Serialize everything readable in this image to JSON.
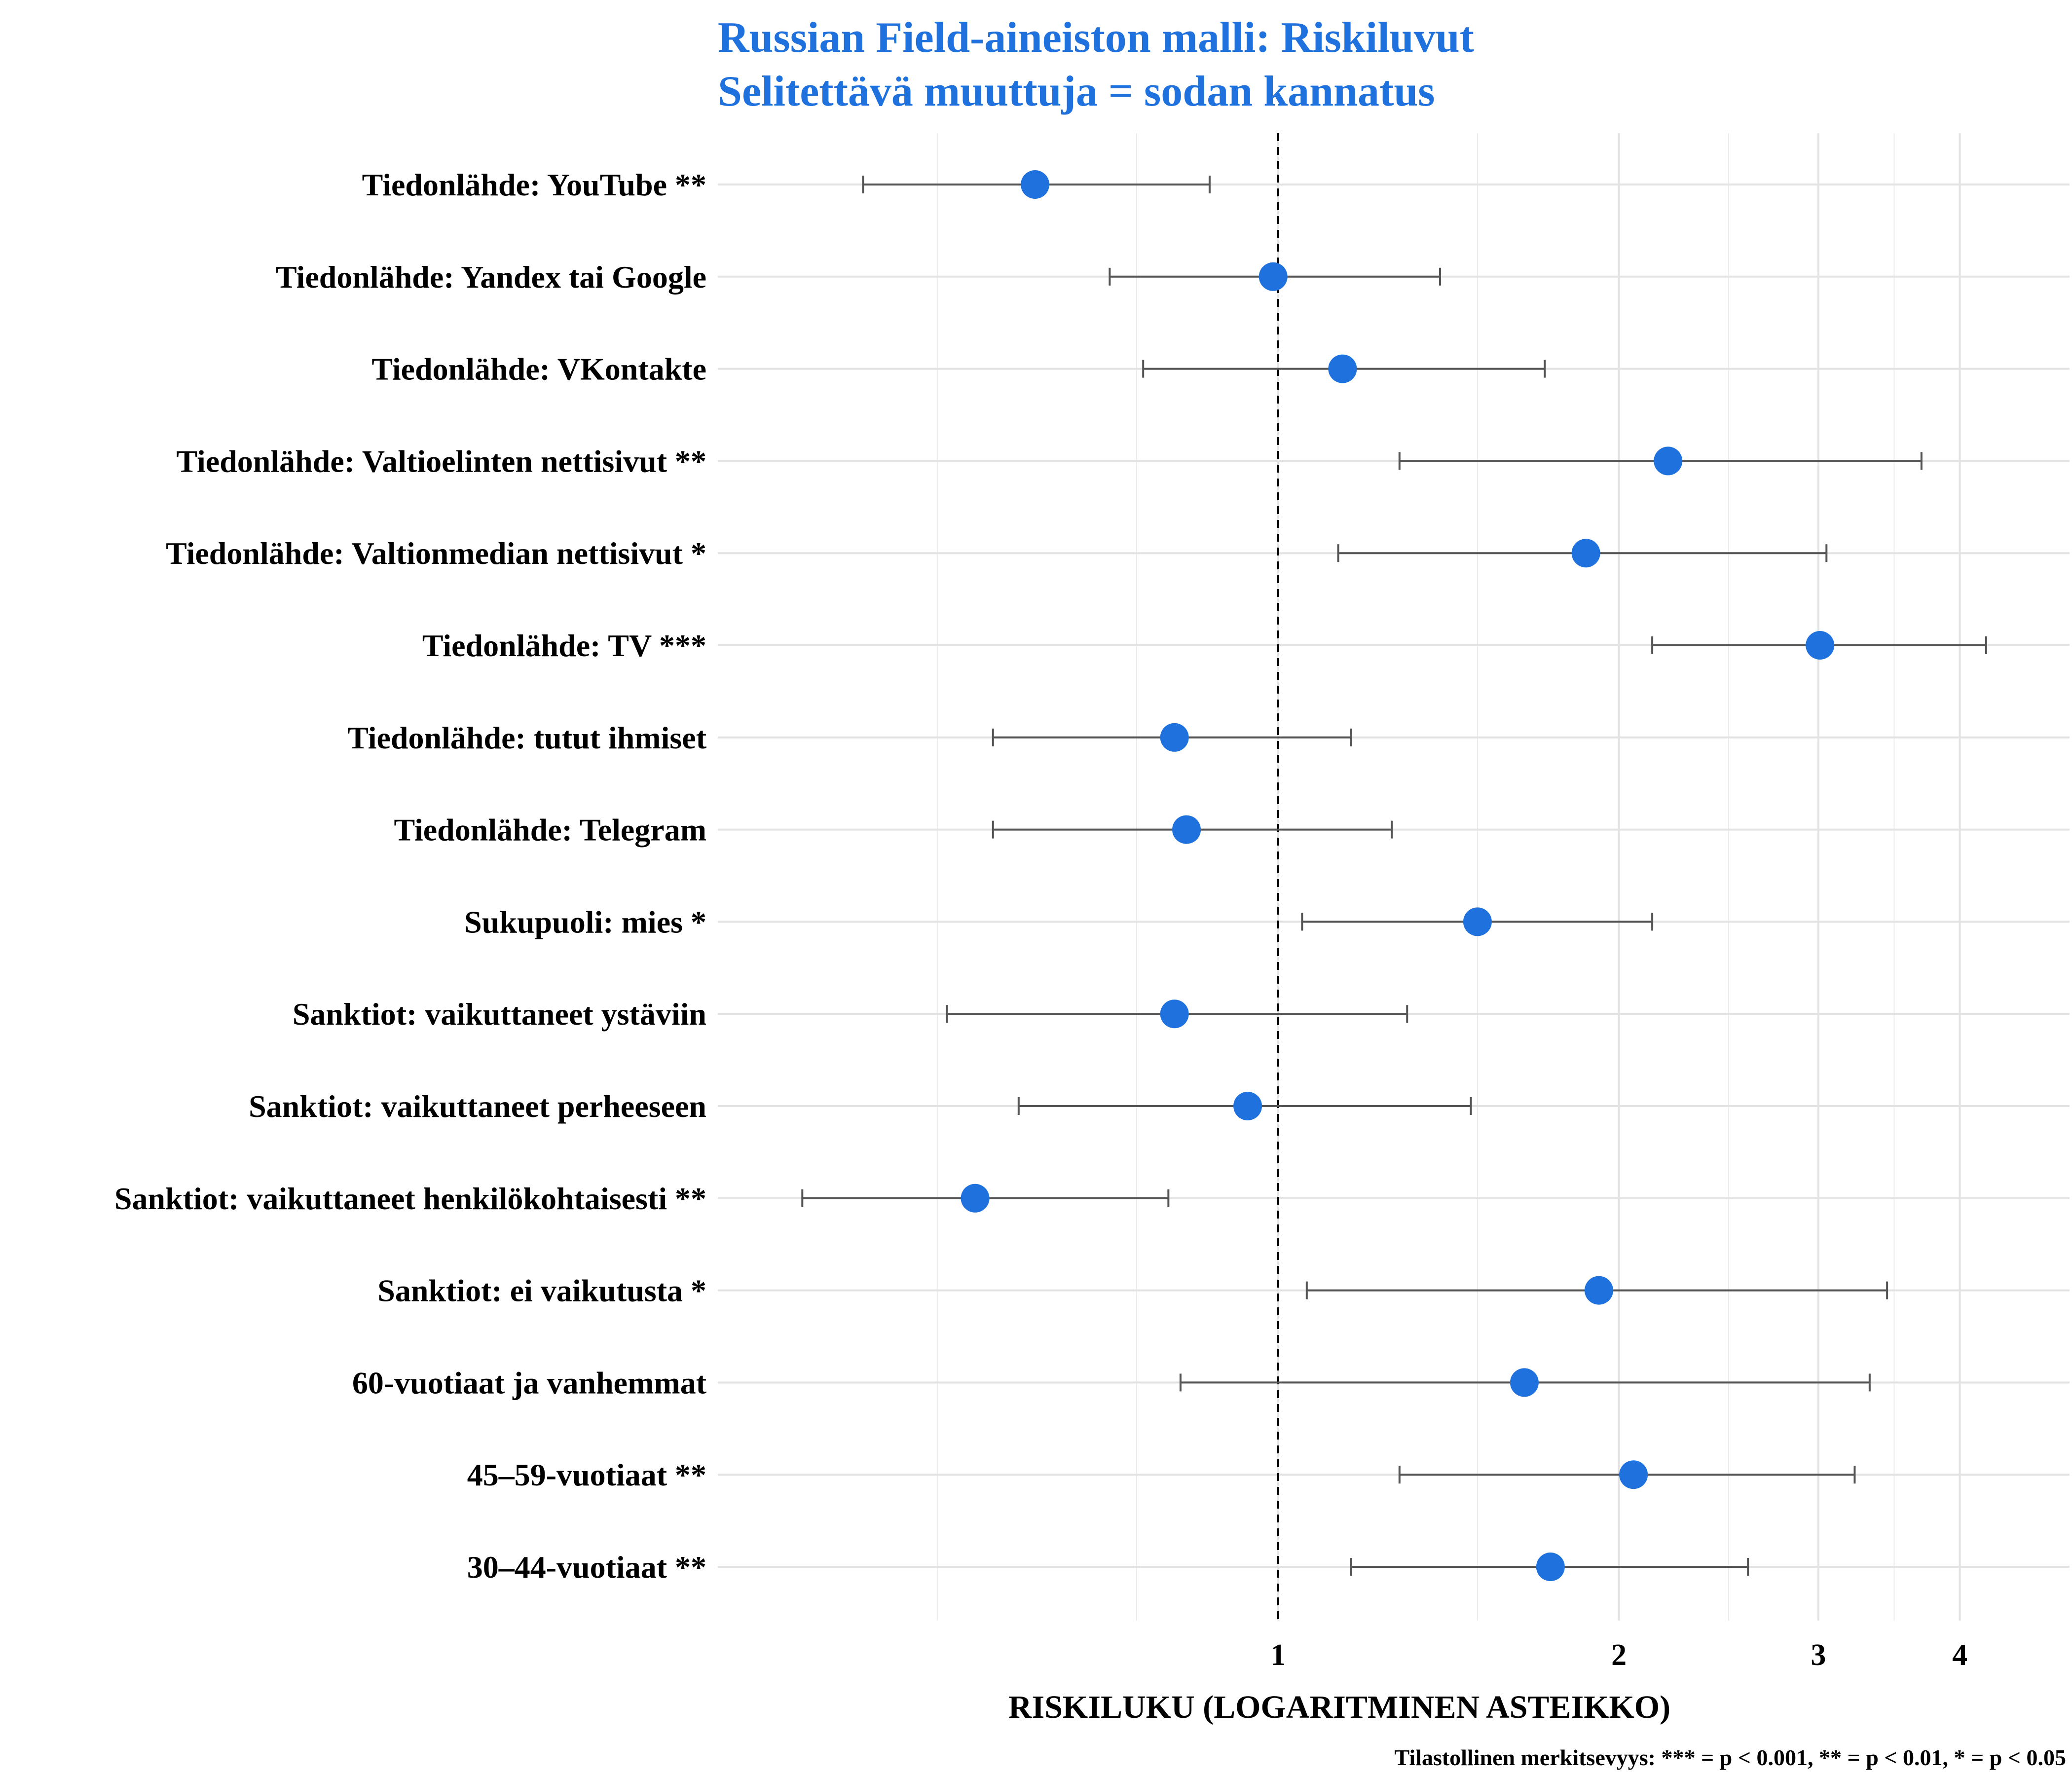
{
  "chart_data": {
    "type": "scatter",
    "title": "Russian Field-aineiston malli: Riskiluvut",
    "subtitle": "Selitettävä muuttuja = sodan kannatus",
    "xlabel": "RISKILUKU (LOGARITMINEN ASTEIKKO)",
    "x_scale": "log",
    "xlim": [
      0.32,
      5.0
    ],
    "x_ticks": [
      1,
      2,
      3,
      4
    ],
    "x_tick_labels": [
      "1",
      "2",
      "3",
      "4"
    ],
    "reference_line": 1,
    "grid": true,
    "caption": "Tilastollinen merkitsevyys: *** = p < 0.001, ** = p < 0.01, * = p < 0.05",
    "point_color": "#1F72DE",
    "error_bar_color": "#555555",
    "rows": [
      {
        "label": "Tiedonlähde: YouTube **",
        "estimate": 0.61,
        "lower": 0.43,
        "upper": 0.87
      },
      {
        "label": "Tiedonlähde: Yandex tai Google",
        "estimate": 0.99,
        "lower": 0.71,
        "upper": 1.39
      },
      {
        "label": "Tiedonlähde: VKontakte",
        "estimate": 1.14,
        "lower": 0.76,
        "upper": 1.72
      },
      {
        "label": "Tiedonlähde: Valtioelinten nettisivut **",
        "estimate": 2.21,
        "lower": 1.28,
        "upper": 3.7
      },
      {
        "label": "Tiedonlähde: Valtionmedian nettisivut *",
        "estimate": 1.87,
        "lower": 1.13,
        "upper": 3.05
      },
      {
        "label": "Tiedonlähde: TV ***",
        "estimate": 3.01,
        "lower": 2.14,
        "upper": 4.22
      },
      {
        "label": "Tiedonlähde: tutut ihmiset",
        "estimate": 0.81,
        "lower": 0.56,
        "upper": 1.16
      },
      {
        "label": "Tiedonlähde: Telegram",
        "estimate": 0.83,
        "lower": 0.56,
        "upper": 1.26
      },
      {
        "label": "Sukupuoli: mies *",
        "estimate": 1.5,
        "lower": 1.05,
        "upper": 2.14
      },
      {
        "label": "Sanktiot: vaikuttaneet ystäviin",
        "estimate": 0.81,
        "lower": 0.51,
        "upper": 1.3
      },
      {
        "label": "Sanktiot: vaikuttaneet perheeseen",
        "estimate": 0.94,
        "lower": 0.59,
        "upper": 1.48
      },
      {
        "label": "Sanktiot: vaikuttaneet henkilökohtaisesti **",
        "estimate": 0.54,
        "lower": 0.38,
        "upper": 0.8
      },
      {
        "label": "Sanktiot: ei vaikutusta *",
        "estimate": 1.92,
        "lower": 1.06,
        "upper": 3.45
      },
      {
        "label": "60-vuotiaat ja vanhemmat",
        "estimate": 1.65,
        "lower": 0.82,
        "upper": 3.33
      },
      {
        "label": "45–59-vuotiaat **",
        "estimate": 2.06,
        "lower": 1.28,
        "upper": 3.23
      },
      {
        "label": "30–44-vuotiaat **",
        "estimate": 1.74,
        "lower": 1.16,
        "upper": 2.6
      }
    ]
  }
}
